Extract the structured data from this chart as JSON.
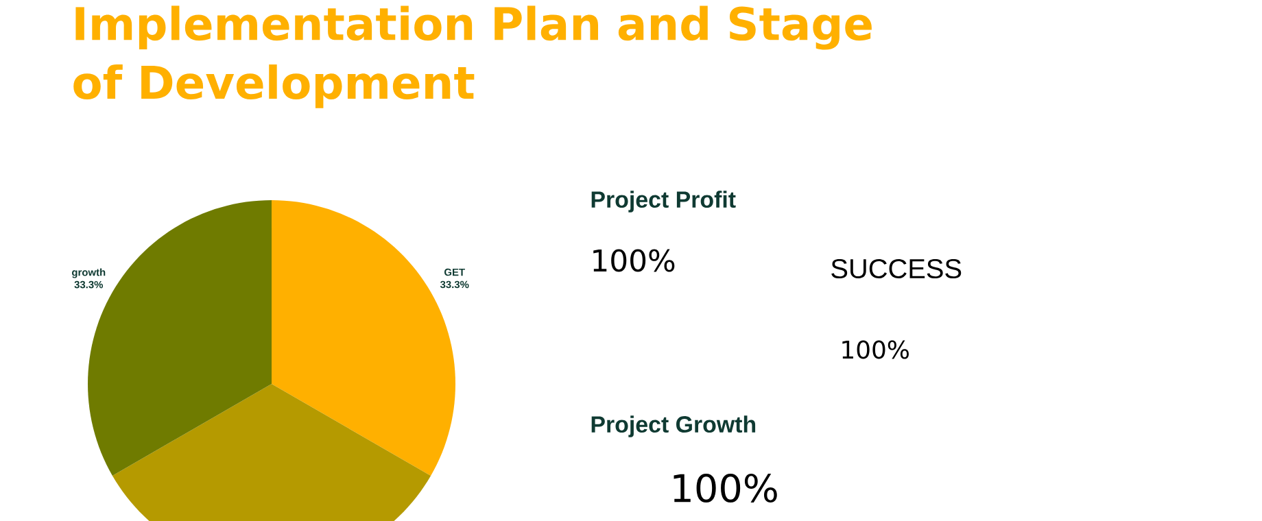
{
  "chart_data": {
    "type": "pie",
    "title": "Implementation Plan and Stage of Development",
    "categories": [
      "GET",
      null,
      "growth"
    ],
    "values": [
      33.3,
      33.3,
      33.3
    ],
    "value_labels": [
      "33.3%",
      null,
      "33.3%"
    ],
    "colors": [
      "#ffb000",
      "#b59a00",
      "#6f7b00"
    ],
    "annotations": [
      "Project Profit",
      "100%",
      "SUCCESS",
      "100%",
      "Project Growth",
      "100%"
    ]
  }
}
